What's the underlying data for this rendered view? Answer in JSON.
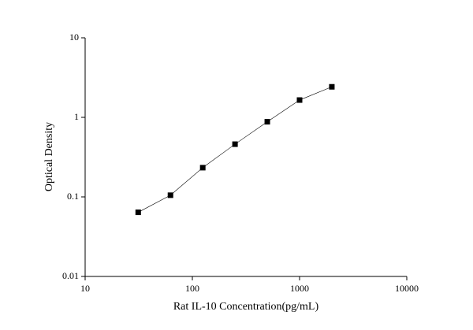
{
  "chart_data": {
    "type": "line-scatter",
    "x_label": "Rat IL-10 Concentration(pg/mL)",
    "y_label": "Optical Density",
    "x": [
      31.25,
      62.5,
      125,
      250,
      500,
      1000,
      2000
    ],
    "series": [
      {
        "color": "#000000",
        "values": [
          0.064,
          0.105,
          0.233,
          0.46,
          0.88,
          1.65,
          2.42
        ]
      }
    ],
    "xlim": [
      10,
      10000
    ],
    "xticks": [
      10,
      100,
      1000,
      10000
    ],
    "ylim": [
      0.01,
      10
    ],
    "yticks": [
      0.01,
      0.1,
      1,
      10
    ],
    "xscale": "log",
    "yscale": "log",
    "grid": false
  }
}
